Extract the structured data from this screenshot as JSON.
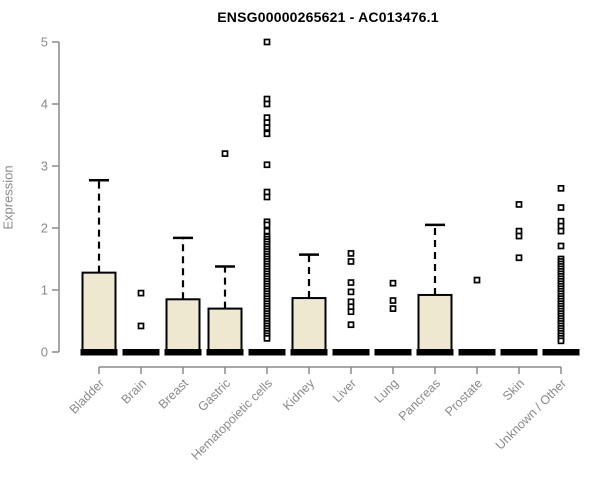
{
  "chart_data": {
    "type": "box",
    "title": "ENSG00000265621 - AC013476.1",
    "ylabel": "Expression",
    "xlabel": "",
    "ylim": [
      0,
      5
    ],
    "yticks": [
      "0",
      "1",
      "2",
      "3",
      "4",
      "5"
    ],
    "grid": false,
    "legend": null,
    "colors": {
      "box_fill": "#EEE8D0",
      "box_stroke": "#000000",
      "median": "#000000",
      "outlier_stroke": "#000000",
      "outlier_fill": "#ffffff",
      "axis": "#8a8a8a",
      "title": "#000000",
      "background": "#ffffff"
    },
    "categories": [
      "Bladder",
      "Brain",
      "Breast",
      "Gastric",
      "Hematopoietic cells",
      "Kidney",
      "Liver",
      "Lung",
      "Pancreas",
      "Prostate",
      "Skin",
      "Unknown / Other"
    ],
    "series": [
      {
        "category": "Bladder",
        "median": 0,
        "q1": 0,
        "q3": 1.28,
        "whisker_low": 0,
        "whisker_high": 2.77,
        "outliers": []
      },
      {
        "category": "Brain",
        "median": 0,
        "q1": 0,
        "q3": 0,
        "whisker_low": 0,
        "whisker_high": 0,
        "outliers": [
          0.95,
          0.42
        ]
      },
      {
        "category": "Breast",
        "median": 0,
        "q1": 0,
        "q3": 0.85,
        "whisker_low": 0,
        "whisker_high": 1.84,
        "outliers": []
      },
      {
        "category": "Gastric",
        "median": 0,
        "q1": 0,
        "q3": 0.7,
        "whisker_low": 0,
        "whisker_high": 1.38,
        "outliers": [
          3.2
        ]
      },
      {
        "category": "Hematopoietic cells",
        "median": 0,
        "q1": 0,
        "q3": 0,
        "whisker_low": 0,
        "whisker_high": 0,
        "outliers": [
          5.0,
          4.08,
          4.0,
          3.78,
          3.7,
          3.62,
          3.52,
          3.02,
          2.58,
          2.5,
          2.1,
          2.05,
          1.95,
          1.86,
          1.82,
          1.78,
          1.74,
          1.7,
          1.66,
          1.62,
          1.58,
          1.54,
          1.5,
          1.46,
          1.42,
          1.38,
          1.34,
          1.3,
          1.26,
          1.22,
          1.18,
          1.14,
          1.1,
          1.06,
          1.02,
          0.98,
          0.94,
          0.9,
          0.86,
          0.82,
          0.78,
          0.74,
          0.7,
          0.66,
          0.62,
          0.58,
          0.54,
          0.5,
          0.46,
          0.42,
          0.38,
          0.34,
          0.3,
          0.26,
          0.22
        ]
      },
      {
        "category": "Kidney",
        "median": 0,
        "q1": 0,
        "q3": 0.87,
        "whisker_low": 0,
        "whisker_high": 1.57,
        "outliers": []
      },
      {
        "category": "Liver",
        "median": 0,
        "q1": 0,
        "q3": 0,
        "whisker_low": 0,
        "whisker_high": 0,
        "outliers": [
          1.59,
          1.46,
          1.12,
          0.97,
          0.81,
          0.73,
          0.65,
          0.44
        ]
      },
      {
        "category": "Lung",
        "median": 0,
        "q1": 0,
        "q3": 0,
        "whisker_low": 0,
        "whisker_high": 0,
        "outliers": [
          1.11,
          0.83,
          0.7
        ]
      },
      {
        "category": "Pancreas",
        "median": 0,
        "q1": 0,
        "q3": 0.92,
        "whisker_low": 0,
        "whisker_high": 2.05,
        "outliers": []
      },
      {
        "category": "Prostate",
        "median": 0,
        "q1": 0,
        "q3": 0,
        "whisker_low": 0,
        "whisker_high": 0,
        "outliers": [
          1.16
        ]
      },
      {
        "category": "Skin",
        "median": 0,
        "q1": 0,
        "q3": 0,
        "whisker_low": 0,
        "whisker_high": 0,
        "outliers": [
          2.38,
          1.95,
          1.87,
          1.52
        ]
      },
      {
        "category": "Unknown / Other",
        "median": 0,
        "q1": 0,
        "q3": 0,
        "whisker_low": 0,
        "whisker_high": 0,
        "outliers": [
          2.64,
          2.33,
          2.11,
          2.03,
          1.95,
          1.71,
          1.5,
          1.46,
          1.42,
          1.38,
          1.34,
          1.3,
          1.26,
          1.22,
          1.18,
          1.14,
          1.1,
          1.06,
          1.02,
          0.98,
          0.94,
          0.9,
          0.86,
          0.82,
          0.78,
          0.74,
          0.7,
          0.66,
          0.62,
          0.58,
          0.54,
          0.5,
          0.46,
          0.42,
          0.38,
          0.34,
          0.3,
          0.26,
          0.22,
          0.18
        ]
      }
    ]
  }
}
